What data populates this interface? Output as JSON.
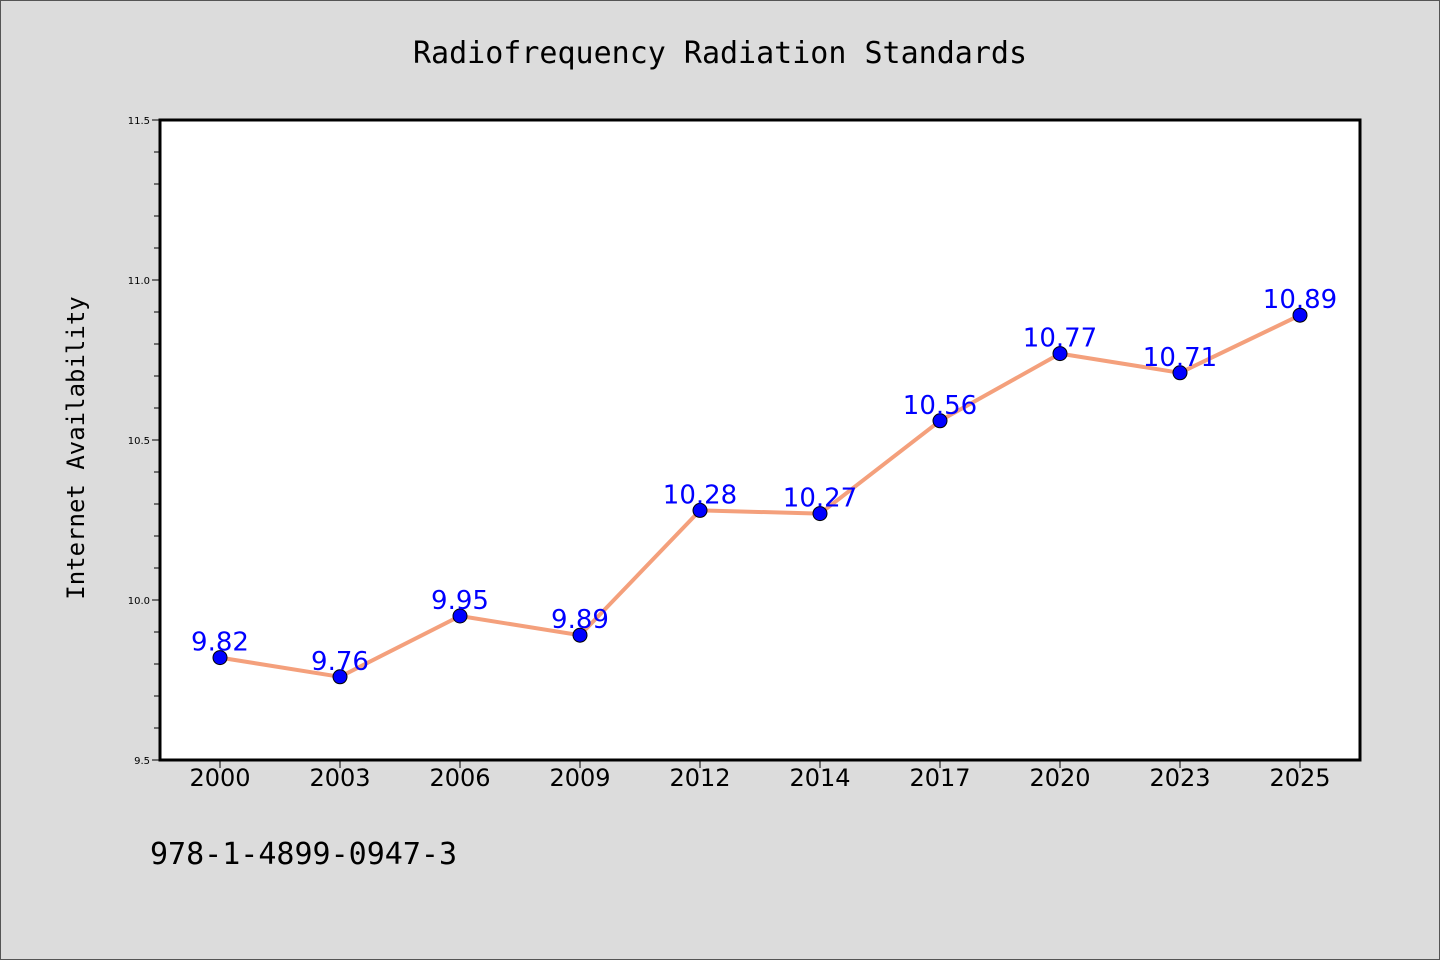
{
  "chart_data": {
    "type": "line",
    "title": "Radiofrequency Radiation Standards",
    "ylabel": "Internet Availability",
    "xlabel": "",
    "categories": [
      "2000",
      "2003",
      "2006",
      "2009",
      "2012",
      "2014",
      "2017",
      "2020",
      "2023",
      "2025"
    ],
    "series": [
      {
        "values": [
          9.82,
          9.76,
          9.95,
          9.89,
          10.28,
          10.27,
          10.56,
          10.77,
          10.71,
          10.89
        ],
        "labels": [
          "9.82",
          "9.76",
          "9.95",
          "9.89",
          "10.28",
          "10.27",
          "10.56",
          "10.77",
          "10.71",
          "10.89"
        ],
        "line_color": "#f4a07c",
        "marker_color": "#0000ff"
      }
    ],
    "ylim": [
      9.5,
      11.5
    ],
    "y_ticks": [
      "9.5",
      "10.0",
      "10.5",
      "11.0",
      "11.5"
    ],
    "grid": false,
    "background_color": "#dcdcdc",
    "plot_background_color": "#ffffff"
  },
  "footer": {
    "code": "978-1-4899-0947-3"
  }
}
